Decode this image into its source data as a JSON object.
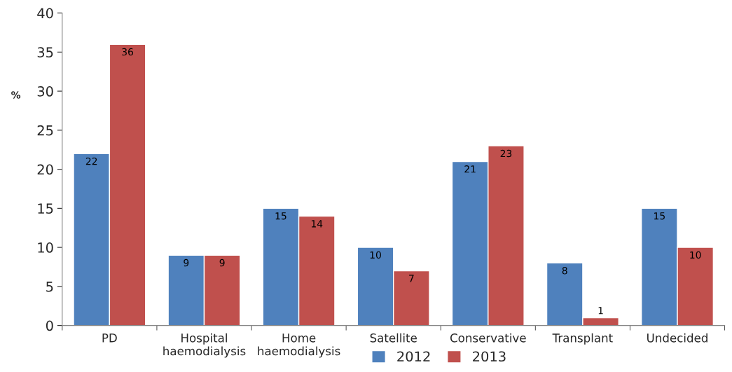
{
  "chart_data": {
    "type": "bar",
    "ylabel": "%",
    "categories": [
      "PD",
      "Hospital\nhaemodialysis",
      "Home\nhaemodialysis",
      "Satellite",
      "Conservative",
      "Transplant",
      "Undecided"
    ],
    "series": [
      {
        "name": "2012",
        "color": "#4f81bd",
        "values": [
          22,
          9,
          15,
          10,
          21,
          8,
          15
        ]
      },
      {
        "name": "2013",
        "color": "#c0504d",
        "values": [
          36,
          9,
          14,
          7,
          23,
          1,
          10
        ]
      }
    ],
    "ylim": [
      0,
      40
    ],
    "yticks": [
      0,
      5,
      10,
      15,
      20,
      25,
      30,
      35,
      40
    ],
    "data_labels": true,
    "grid": false,
    "legend": "bottom"
  }
}
